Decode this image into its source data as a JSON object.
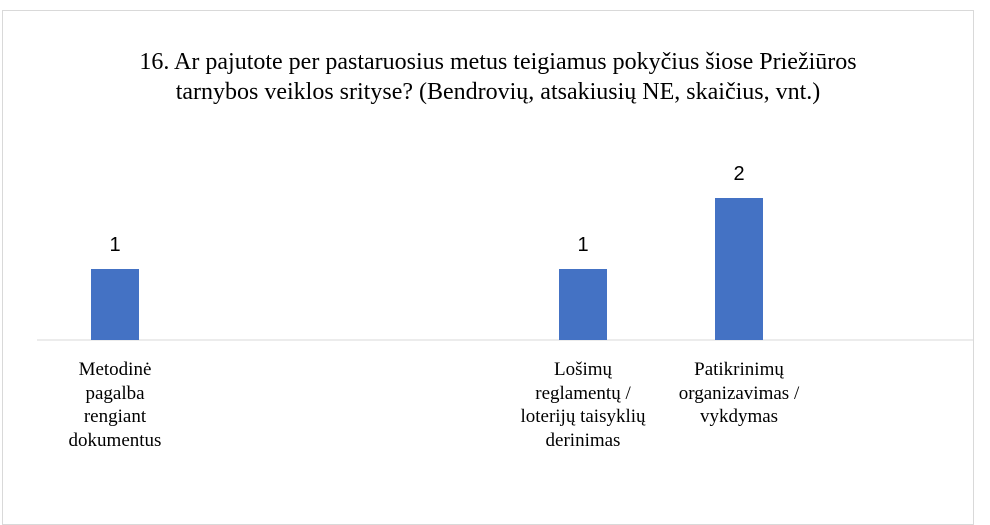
{
  "chart_data": {
    "type": "bar",
    "title": "16. Ar pajutote per pastaruosius metus teigiamus pokyčius šiose Priežiūros tarnybos veiklos srityse? (Bendrovių, atsakiusių NE, skaičius, vnt.)",
    "categories": [
      "Metodinė pagalba rengiant dokumentus",
      null,
      null,
      "Lošimų reglamentų / loterijų taisyklių derinimas",
      "Patikrinimų organizavimas / vykdymas",
      null
    ],
    "values": [
      1,
      null,
      null,
      1,
      2,
      null
    ],
    "color": "#4472c4",
    "ylim": [
      0,
      3
    ]
  }
}
